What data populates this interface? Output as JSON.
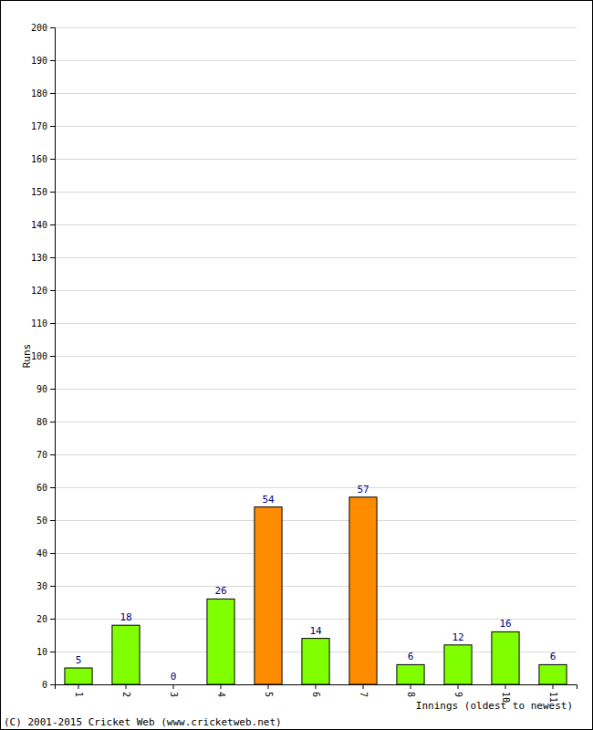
{
  "chart_data": {
    "type": "bar",
    "categories": [
      "1",
      "2",
      "3",
      "4",
      "5",
      "6",
      "7",
      "8",
      "9",
      "10",
      "11"
    ],
    "values": [
      5,
      18,
      0,
      26,
      54,
      14,
      57,
      6,
      12,
      16,
      6
    ],
    "colors": [
      "#80ff00",
      "#80ff00",
      "#80ff00",
      "#80ff00",
      "#ff8c00",
      "#80ff00",
      "#ff8c00",
      "#80ff00",
      "#80ff00",
      "#80ff00",
      "#80ff00"
    ],
    "ylim": [
      0,
      200
    ],
    "yticks": [
      0,
      10,
      20,
      30,
      40,
      50,
      60,
      70,
      80,
      90,
      100,
      110,
      120,
      130,
      140,
      150,
      160,
      170,
      180,
      190,
      200
    ],
    "grid": true,
    "data_labels": true,
    "y_label": "Runs",
    "x_label": "Innings (oldest to newest)",
    "annotation": "(C) 2001-2015 Cricket Web (www.cricketweb.net)"
  }
}
